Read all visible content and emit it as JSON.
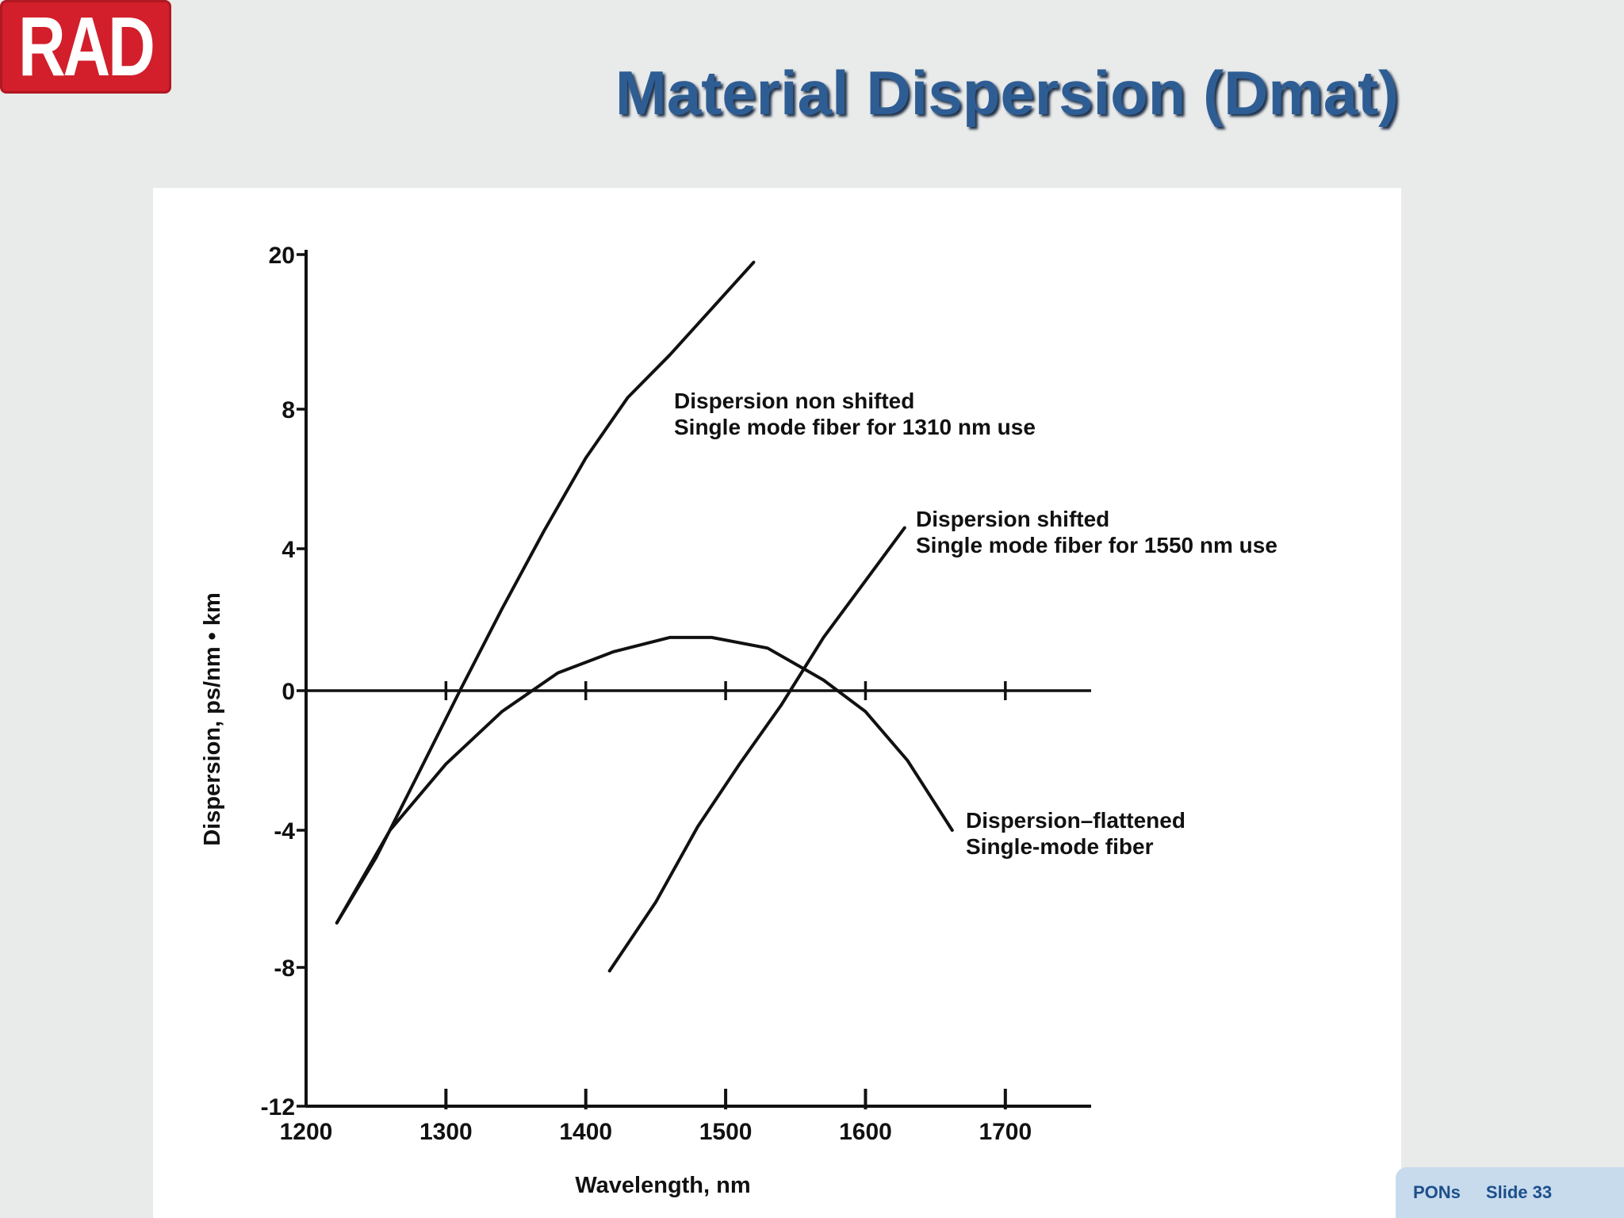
{
  "logo": {
    "text": "RAD"
  },
  "slide": {
    "title": "Material Dispersion (Dmat)",
    "footer_section": "PONs",
    "footer_slide": "Slide 33"
  },
  "colors": {
    "title": "#2e5d94",
    "logo_bg": "#d21f2b",
    "footer_bg": "#c7dbed",
    "footer_text": "#1d4f8a",
    "plot_line": "#111111"
  },
  "chart_data": {
    "type": "line",
    "title": "",
    "xlabel": "Wavelength, nm",
    "ylabel": "Dispersion, ps/nm • km",
    "xlim": [
      1200,
      1750
    ],
    "x_ticks": [
      "1200",
      "1300",
      "1400",
      "1500",
      "1600",
      "1700"
    ],
    "x_tick_values": [
      1200,
      1300,
      1400,
      1500,
      1600,
      1700
    ],
    "y_ticks": [
      "20",
      "8",
      "4",
      "0",
      "-4",
      "-8",
      "-12"
    ],
    "y_tick_values": [
      20,
      8,
      4,
      0,
      -4,
      -8,
      -12
    ],
    "y_scale_note": "",
    "grid": false,
    "legend": "none",
    "series": [
      {
        "name": "Dispersion non shifted Single mode fiber for 1310 nm use",
        "label_lines": [
          "Dispersion  non shifted",
          "Single mode fiber for 1310 nm use"
        ],
        "points": [
          [
            1222,
            -6.7
          ],
          [
            1250,
            -4.8
          ],
          [
            1280,
            -2.4
          ],
          [
            1310,
            0
          ],
          [
            1340,
            2.3
          ],
          [
            1370,
            4.5
          ],
          [
            1400,
            6.6
          ],
          [
            1430,
            8.9
          ],
          [
            1460,
            12.2
          ],
          [
            1490,
            15.8
          ],
          [
            1520,
            19.4
          ]
        ]
      },
      {
        "name": "Dispersion shifted Single mode fiber for 1550 nm use",
        "label_lines": [
          "Dispersion  shifted",
          "Single mode fiber for 1550 nm use"
        ],
        "points": [
          [
            1417,
            -8.1
          ],
          [
            1450,
            -6.1
          ],
          [
            1480,
            -3.9
          ],
          [
            1510,
            -2.1
          ],
          [
            1540,
            -0.4
          ],
          [
            1570,
            1.5
          ],
          [
            1600,
            3.1
          ],
          [
            1628,
            4.6
          ]
        ]
      },
      {
        "name": "Dispersion-flattened Single-mode fiber",
        "label_lines": [
          "Dispersion–flattened",
          "Single-mode fiber"
        ],
        "points": [
          [
            1222,
            -6.7
          ],
          [
            1260,
            -4.0
          ],
          [
            1300,
            -2.1
          ],
          [
            1340,
            -0.6
          ],
          [
            1380,
            0.5
          ],
          [
            1420,
            1.1
          ],
          [
            1460,
            1.5
          ],
          [
            1490,
            1.5
          ],
          [
            1530,
            1.2
          ],
          [
            1570,
            0.3
          ],
          [
            1600,
            -0.6
          ],
          [
            1630,
            -2.0
          ],
          [
            1662,
            -4.0
          ]
        ]
      }
    ]
  }
}
